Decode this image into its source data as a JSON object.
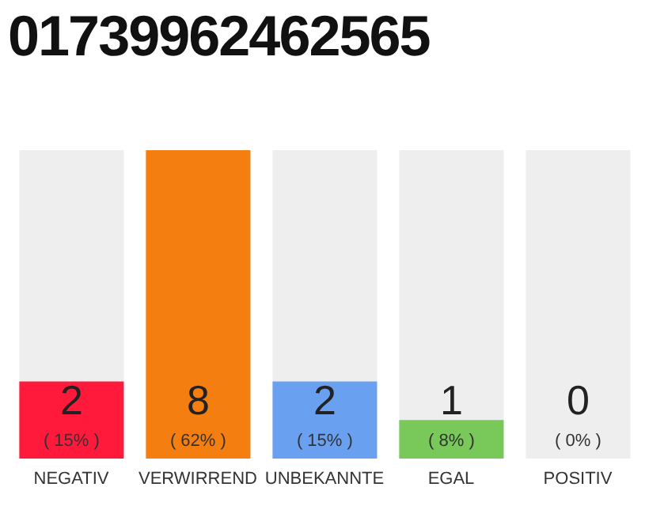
{
  "chart_data": {
    "type": "bar",
    "title": "01739962462565",
    "categories": [
      "NEGATIV",
      "VERWIRREND",
      "UNBEKANNTE",
      "EGAL",
      "POSITIV"
    ],
    "values": [
      2,
      8,
      2,
      1,
      0
    ],
    "colors": [
      "#ff1a3c",
      "#f47f10",
      "#6aa0f0",
      "#79c85a",
      "#eeeeee"
    ],
    "data_labels": true,
    "annotations": [
      "( 15% )",
      "( 62% )",
      "( 15% )",
      "( 8% )",
      "( 0% )"
    ],
    "tick_labels": "x"
  }
}
